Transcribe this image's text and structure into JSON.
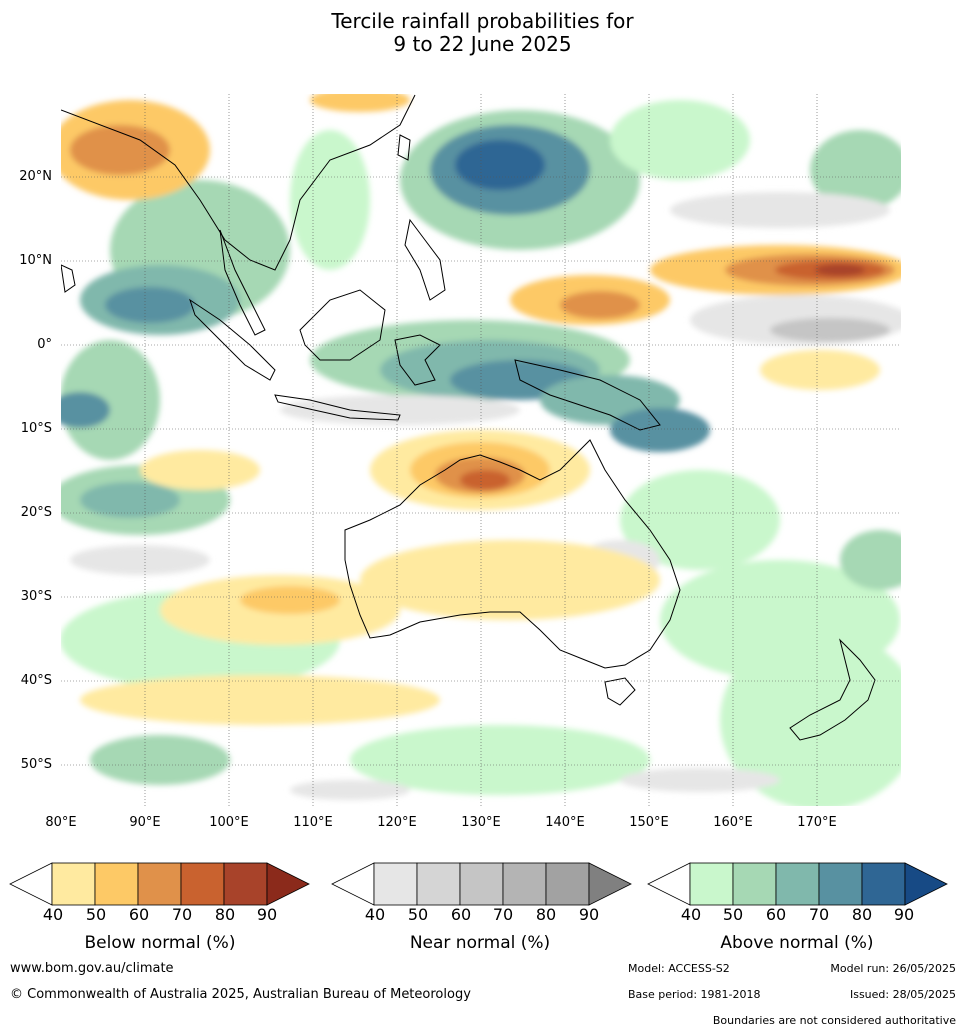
{
  "title": {
    "line1": "Tercile rainfall probabilities for",
    "line2": "9 to 22 June 2025"
  },
  "map": {
    "lat_range": [
      -55,
      30
    ],
    "lon_range": [
      80,
      180
    ],
    "lat_ticks": [
      "20°N",
      "10°N",
      "0°",
      "10°S",
      "20°S",
      "30°S",
      "40°S",
      "50°S"
    ],
    "lon_ticks": [
      "80°E",
      "90°E",
      "100°E",
      "110°E",
      "120°E",
      "130°E",
      "140°E",
      "150°E",
      "160°E",
      "170°E"
    ],
    "gridlines": true
  },
  "colorbars": [
    {
      "label": "Below normal (%)",
      "ticks": [
        "40",
        "50",
        "60",
        "70",
        "80",
        "90"
      ],
      "colors": [
        "#ffeaa0",
        "#fdc966",
        "#e0914a",
        "#c9622f",
        "#a8432a",
        "#8b2a1b"
      ]
    },
    {
      "label": "Near normal (%)",
      "ticks": [
        "40",
        "50",
        "60",
        "70",
        "80",
        "90"
      ],
      "colors": [
        "#e6e6e6",
        "#d5d5d5",
        "#c5c5c5",
        "#b4b4b4",
        "#a2a2a2",
        "#808080"
      ]
    },
    {
      "label": "Above normal (%)",
      "ticks": [
        "40",
        "50",
        "60",
        "70",
        "80",
        "90"
      ],
      "colors": [
        "#c9f7cc",
        "#a6d8b4",
        "#80b8ac",
        "#5891a1",
        "#2f6694",
        "#174a85"
      ]
    }
  ],
  "footer": {
    "url": "www.bom.gov.au/climate",
    "copyright": "© Commonwealth of Australia 2025, Australian Bureau of Meteorology",
    "model": "Model: ACCESS-S2",
    "model_run": "Model run: 26/05/2025",
    "base_period": "Base period: 1981-2018",
    "issued": "Issued: 28/05/2025",
    "boundaries": "Boundaries are not considered authoritative"
  }
}
